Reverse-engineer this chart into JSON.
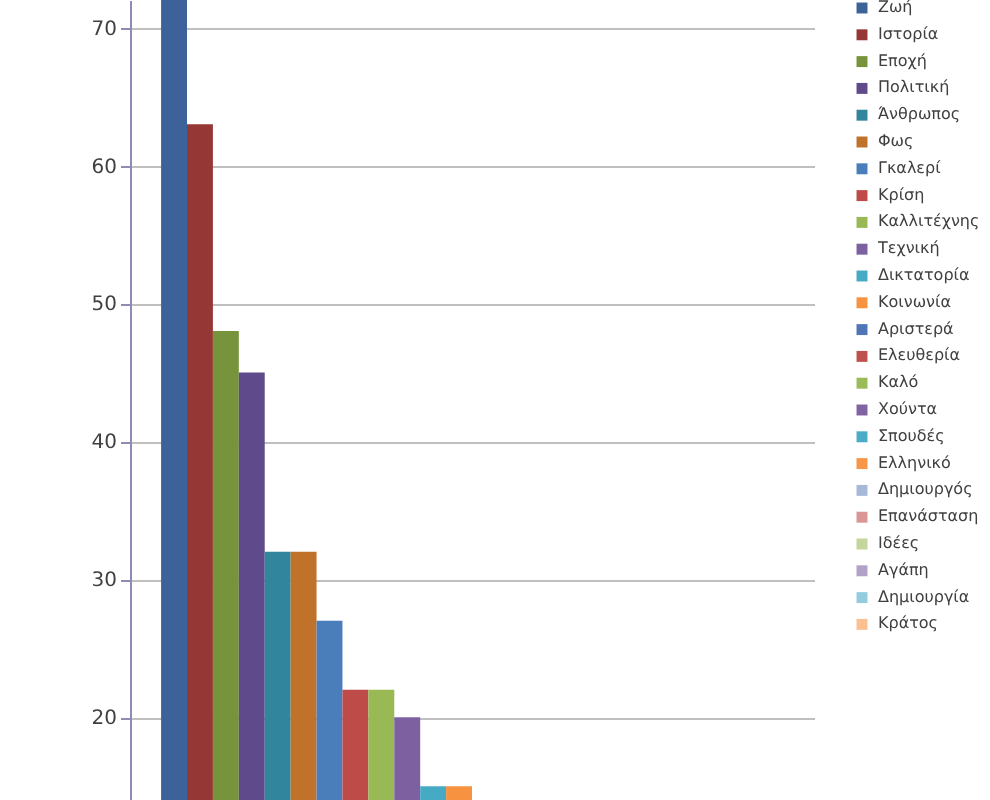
{
  "chart_data": {
    "type": "bar",
    "categories": [
      null
    ],
    "series": [
      {
        "name": "Ζωή",
        "color": "#3c6299",
        "values": [
          72
        ]
      },
      {
        "name": "Ιστορία",
        "color": "#953735",
        "values": [
          63
        ]
      },
      {
        "name": "Εποχή",
        "color": "#77933c",
        "values": [
          48
        ]
      },
      {
        "name": "Πολιτική",
        "color": "#5f4b8b",
        "values": [
          45
        ]
      },
      {
        "name": "Άνθρωπος",
        "color": "#31859c",
        "values": [
          32
        ]
      },
      {
        "name": "Φως",
        "color": "#c0722a",
        "values": [
          32
        ]
      },
      {
        "name": "Γκαλερί",
        "color": "#4a7ebb",
        "values": [
          27
        ]
      },
      {
        "name": "Κρίση",
        "color": "#be4b48",
        "values": [
          22
        ]
      },
      {
        "name": "Καλλιτέχνης",
        "color": "#98b954",
        "values": [
          22
        ]
      },
      {
        "name": "Τεχνική",
        "color": "#7d60a0",
        "values": [
          20
        ]
      },
      {
        "name": "Δικτατορία",
        "color": "#46aac5",
        "values": [
          15
        ]
      },
      {
        "name": "Κοινωνία",
        "color": "#f69240",
        "values": [
          15
        ]
      },
      {
        "name": "Αριστερά",
        "color": "#4f74b8",
        "values": [
          null
        ]
      },
      {
        "name": "Ελευθερία",
        "color": "#c0504d",
        "values": [
          null
        ]
      },
      {
        "name": "Καλό",
        "color": "#9bbb59",
        "values": [
          null
        ]
      },
      {
        "name": "Χούντα",
        "color": "#8064a2",
        "values": [
          null
        ]
      },
      {
        "name": "Σπουδές",
        "color": "#4bacc6",
        "values": [
          null
        ]
      },
      {
        "name": "Ελληνικό",
        "color": "#f79646",
        "values": [
          null
        ]
      },
      {
        "name": "Δημιουργός",
        "color": "#a7b9d8",
        "values": [
          null
        ]
      },
      {
        "name": "Επανάσταση",
        "color": "#d99694",
        "values": [
          null
        ]
      },
      {
        "name": "Ιδέες",
        "color": "#c3d69b",
        "values": [
          null
        ]
      },
      {
        "name": "Αγάπη",
        "color": "#b3a2c7",
        "values": [
          null
        ]
      },
      {
        "name": "Δημιουργία",
        "color": "#93cddd",
        "values": [
          null
        ]
      },
      {
        "name": "Κράτος",
        "color": "#fac090",
        "values": [
          null
        ]
      }
    ],
    "ylim": [
      14,
      72
    ],
    "yticks": [
      20,
      30,
      40,
      50,
      60,
      70
    ],
    "grid": "y",
    "legend": "right",
    "tick_labels": "y"
  }
}
